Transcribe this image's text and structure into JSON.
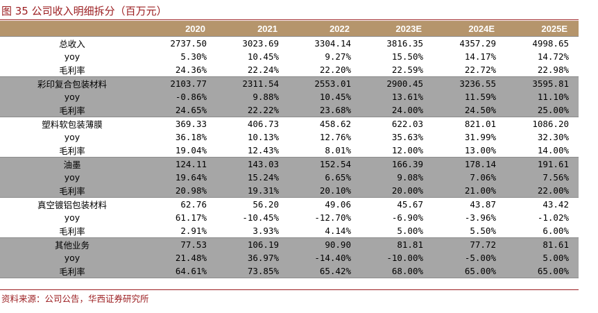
{
  "title": "图 35  公司收入明细拆分（百万元）",
  "source": "资料来源：公司公告，华西证券研究所",
  "colors": {
    "accent": "#9b1c1f",
    "header_bg": "#b5956c",
    "band_gray": "#a6a6a6"
  },
  "table": {
    "headers": [
      "",
      "2020",
      "2021",
      "2022",
      "2023E",
      "2024E",
      "2025E"
    ],
    "groups": [
      {
        "shade": "w",
        "rows": [
          {
            "label": "总收入",
            "values": [
              "2737.50",
              "3023.69",
              "3304.14",
              "3816.35",
              "4357.29",
              "4998.65"
            ]
          },
          {
            "label": "yoy",
            "values": [
              "5.30%",
              "10.45%",
              "9.27%",
              "15.50%",
              "14.17%",
              "14.72%"
            ]
          },
          {
            "label": "毛利率",
            "values": [
              "24.36%",
              "22.24%",
              "22.20%",
              "22.59%",
              "22.72%",
              "22.98%"
            ]
          }
        ]
      },
      {
        "shade": "g",
        "rows": [
          {
            "label": "彩印复合包装材料",
            "values": [
              "2103.77",
              "2311.54",
              "2553.01",
              "2900.45",
              "3236.55",
              "3595.81"
            ]
          },
          {
            "label": "yoy",
            "values": [
              "-0.86%",
              "9.88%",
              "10.45%",
              "13.61%",
              "11.59%",
              "11.10%"
            ]
          },
          {
            "label": "毛利率",
            "values": [
              "24.65%",
              "22.22%",
              "23.68%",
              "24.00%",
              "24.50%",
              "25.00%"
            ]
          }
        ]
      },
      {
        "shade": "w",
        "rows": [
          {
            "label": "塑料软包装薄膜",
            "values": [
              "369.33",
              "406.73",
              "458.62",
              "622.03",
              "821.01",
              "1086.20"
            ]
          },
          {
            "label": "yoy",
            "values": [
              "36.18%",
              "10.13%",
              "12.76%",
              "35.63%",
              "31.99%",
              "32.30%"
            ]
          },
          {
            "label": "毛利率",
            "values": [
              "19.04%",
              "12.43%",
              "8.01%",
              "12.00%",
              "13.00%",
              "14.00%"
            ]
          }
        ]
      },
      {
        "shade": "g",
        "rows": [
          {
            "label": "油墨",
            "values": [
              "124.11",
              "143.03",
              "152.54",
              "166.39",
              "178.14",
              "191.61"
            ]
          },
          {
            "label": "yoy",
            "values": [
              "19.64%",
              "15.24%",
              "6.65%",
              "9.08%",
              "7.06%",
              "7.56%"
            ]
          },
          {
            "label": "毛利率",
            "values": [
              "20.98%",
              "19.31%",
              "20.10%",
              "20.00%",
              "21.00%",
              "22.00%"
            ]
          }
        ]
      },
      {
        "shade": "w",
        "rows": [
          {
            "label": "真空镀铝包装材料",
            "values": [
              "62.76",
              "56.20",
              "49.06",
              "45.67",
              "43.87",
              "43.42"
            ]
          },
          {
            "label": "yoy",
            "values": [
              "61.17%",
              "-10.45%",
              "-12.70%",
              "-6.90%",
              "-3.96%",
              "-1.02%"
            ]
          },
          {
            "label": "毛利率",
            "values": [
              "2.91%",
              "3.93%",
              "4.14%",
              "5.00%",
              "5.50%",
              "6.00%"
            ]
          }
        ]
      },
      {
        "shade": "g",
        "rows": [
          {
            "label": "其他业务",
            "values": [
              "77.53",
              "106.19",
              "90.90",
              "81.81",
              "77.72",
              "81.61"
            ]
          },
          {
            "label": "yoy",
            "values": [
              "21.48%",
              "36.97%",
              "-14.40%",
              "-10.00%",
              "-5.00%",
              "5.00%"
            ]
          },
          {
            "label": "毛利率",
            "values": [
              "64.61%",
              "73.85%",
              "65.42%",
              "68.00%",
              "65.00%",
              "65.00%"
            ]
          }
        ]
      }
    ]
  }
}
